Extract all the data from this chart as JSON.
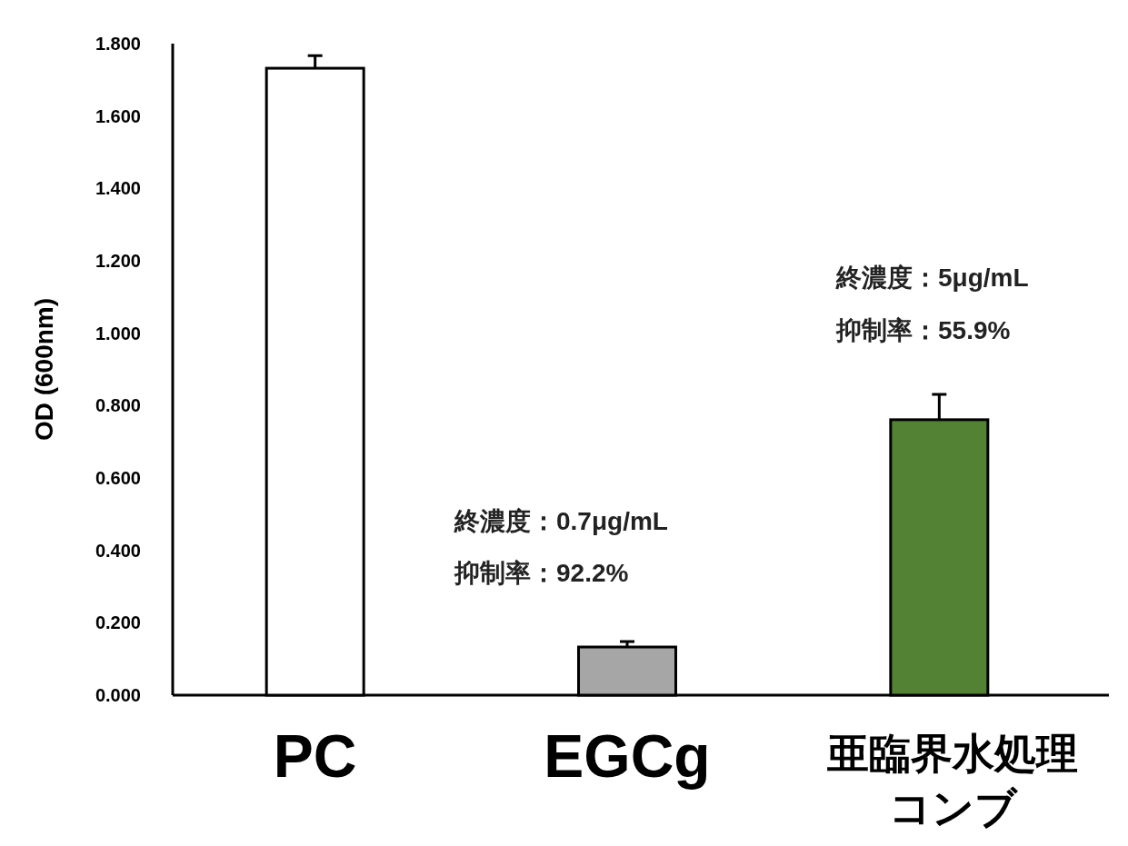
{
  "chart_data": {
    "type": "bar",
    "ylabel": "OD (600nm)",
    "categories": [
      "PC",
      "EGCg",
      "亜臨界水処理コンブ"
    ],
    "values": [
      1.732,
      0.133,
      0.761
    ],
    "colors": [
      "#ffffff",
      "#a6a6a6",
      "#548235"
    ],
    "errors": [
      [
        1.732,
        1.767
      ],
      [
        0.133,
        0.148
      ],
      [
        0.761,
        0.831
      ]
    ],
    "ylim": [
      0,
      1.8
    ],
    "yticks": [
      {
        "value": 0,
        "label": "0.000"
      },
      {
        "value": 0.2,
        "label": "0.200"
      },
      {
        "value": 0.4,
        "label": "0.400"
      },
      {
        "value": 0.6,
        "label": "0.600"
      },
      {
        "value": 0.8,
        "label": "0.800"
      },
      {
        "value": 1.0,
        "label": "1.000"
      },
      {
        "value": 1.2,
        "label": "1.200"
      },
      {
        "value": 1.4,
        "label": "1.400"
      },
      {
        "value": 1.6,
        "label": "1.600"
      },
      {
        "value": 1.8,
        "label": "1.800"
      }
    ],
    "annotations": [
      "終濃度：0.7μg/mL",
      "抑制率：92.2%",
      "終濃度：5μg/mL",
      "抑制率：55.9%"
    ],
    "grid": false
  }
}
